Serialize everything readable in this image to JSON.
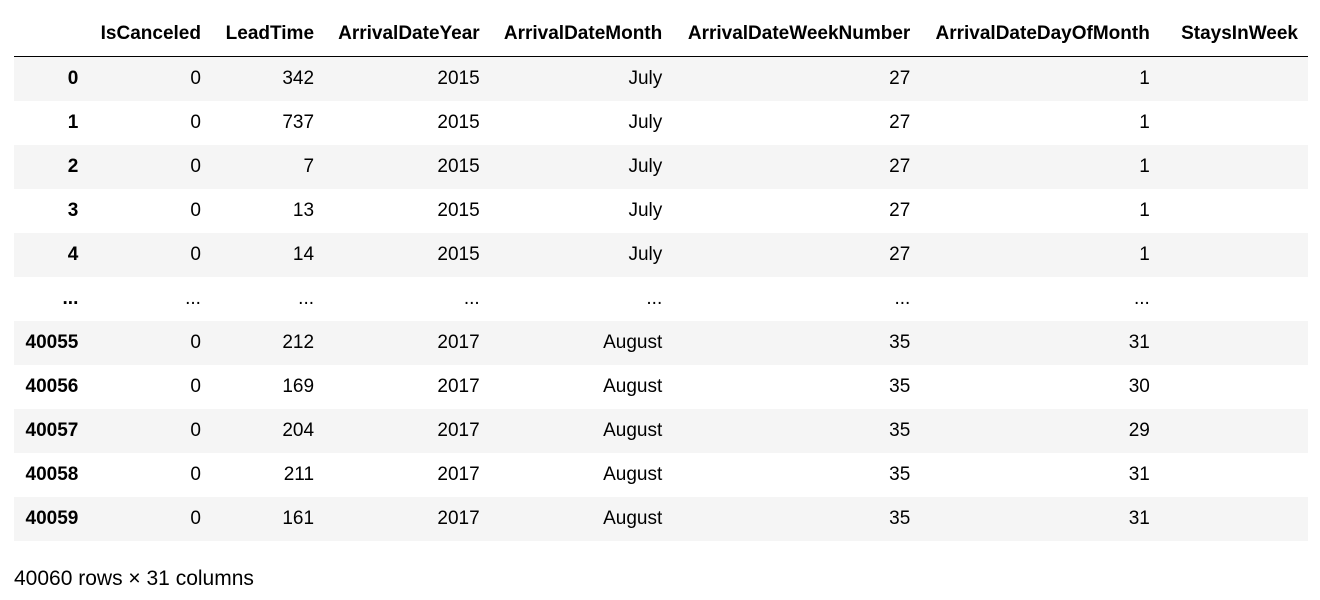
{
  "table": {
    "columns": [
      "",
      "IsCanceled",
      "LeadTime",
      "ArrivalDateYear",
      "ArrivalDateMonth",
      "ArrivalDateWeekNumber",
      "ArrivalDateDayOfMonth",
      "StaysInWeek"
    ],
    "rows": [
      {
        "index": "0",
        "cells": [
          "0",
          "342",
          "2015",
          "July",
          "27",
          "1",
          ""
        ]
      },
      {
        "index": "1",
        "cells": [
          "0",
          "737",
          "2015",
          "July",
          "27",
          "1",
          ""
        ]
      },
      {
        "index": "2",
        "cells": [
          "0",
          "7",
          "2015",
          "July",
          "27",
          "1",
          ""
        ]
      },
      {
        "index": "3",
        "cells": [
          "0",
          "13",
          "2015",
          "July",
          "27",
          "1",
          ""
        ]
      },
      {
        "index": "4",
        "cells": [
          "0",
          "14",
          "2015",
          "July",
          "27",
          "1",
          ""
        ]
      },
      {
        "index": "...",
        "cells": [
          "...",
          "...",
          "...",
          "...",
          "...",
          "...",
          ""
        ]
      },
      {
        "index": "40055",
        "cells": [
          "0",
          "212",
          "2017",
          "August",
          "35",
          "31",
          ""
        ]
      },
      {
        "index": "40056",
        "cells": [
          "0",
          "169",
          "2017",
          "August",
          "35",
          "30",
          ""
        ]
      },
      {
        "index": "40057",
        "cells": [
          "0",
          "204",
          "2017",
          "August",
          "35",
          "29",
          ""
        ]
      },
      {
        "index": "40058",
        "cells": [
          "0",
          "211",
          "2017",
          "August",
          "35",
          "31",
          ""
        ]
      },
      {
        "index": "40059",
        "cells": [
          "0",
          "161",
          "2017",
          "August",
          "35",
          "31",
          ""
        ]
      }
    ]
  },
  "footer": {
    "shape_text": "40060 rows × 31 columns"
  }
}
